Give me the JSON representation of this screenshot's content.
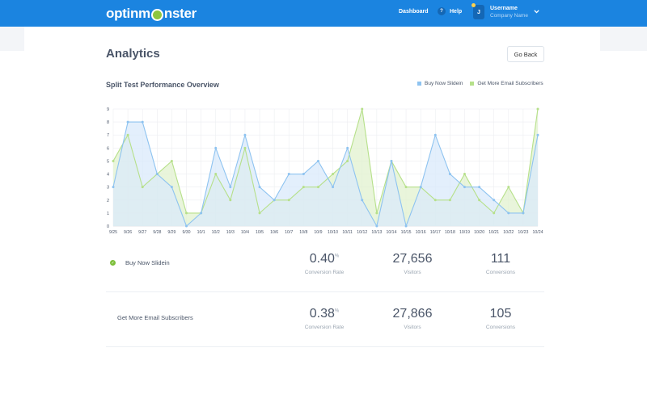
{
  "header": {
    "logo_pre": "optinm",
    "logo_post": "nster",
    "dashboard": "Dashboard",
    "help_icon": "?",
    "help": "Help",
    "avatar_initial": "J",
    "username": "Username",
    "company": "Company Name",
    "brand_color": "#1b84e0"
  },
  "page": {
    "title": "Analytics",
    "go_back": "Go Back"
  },
  "chart_title": "Split Test Performance Overview",
  "legend": {
    "series1": "Buy Now Slidein",
    "series2": "Get More Email Subscribers"
  },
  "chart_data": {
    "type": "area",
    "title": "Split Test Performance Overview",
    "xlabel": "",
    "ylabel": "",
    "ylim": [
      0,
      9
    ],
    "yticks": [
      0,
      1,
      2,
      3,
      4,
      5,
      6,
      7,
      8,
      9
    ],
    "grid": true,
    "legend_position": "top-right",
    "categories": [
      "9/25",
      "9/26",
      "9/27",
      "9/28",
      "9/29",
      "9/30",
      "10/1",
      "10/2",
      "10/3",
      "10/4",
      "10/5",
      "10/6",
      "10/7",
      "10/8",
      "10/9",
      "10/10",
      "10/11",
      "10/12",
      "10/13",
      "10/14",
      "10/15",
      "10/16",
      "10/17",
      "10/18",
      "10/19",
      "10/20",
      "10/21",
      "10/22",
      "10/23",
      "10/24"
    ],
    "series": [
      {
        "name": "Buy Now Slidein",
        "color": "#8ec3f0",
        "fill": "#d9eafb",
        "values": [
          3,
          8,
          8,
          4,
          3,
          0,
          1,
          6,
          3,
          7,
          3,
          2,
          4,
          4,
          5,
          3,
          6,
          2,
          0,
          5,
          0,
          3,
          7,
          4,
          3,
          3,
          2,
          1,
          1,
          7
        ]
      },
      {
        "name": "Get More Email Subscribers",
        "color": "#b6e08a",
        "fill": "#e2f2cf",
        "values": [
          5,
          7,
          3,
          4,
          5,
          1,
          1,
          4,
          2,
          6,
          1,
          2,
          2,
          3,
          3,
          4,
          5,
          9,
          1,
          5,
          3,
          3,
          2,
          2,
          4,
          2,
          1,
          3,
          1,
          9
        ]
      }
    ]
  },
  "results": [
    {
      "name": "Buy Now Slidein",
      "winner": true,
      "conversion_rate": "0.40",
      "rate_unit": "%",
      "conversion_rate_label": "Conversion Rate",
      "visitors": "27,656",
      "visitors_label": "Visitors",
      "conversions": "111",
      "conversions_label": "Conversions"
    },
    {
      "name": "Get More Email Subscribers",
      "winner": false,
      "conversion_rate": "0.38",
      "rate_unit": "%",
      "conversion_rate_label": "Conversion Rate",
      "visitors": "27,866",
      "visitors_label": "Visitors",
      "conversions": "105",
      "conversions_label": "Conversions"
    }
  ]
}
